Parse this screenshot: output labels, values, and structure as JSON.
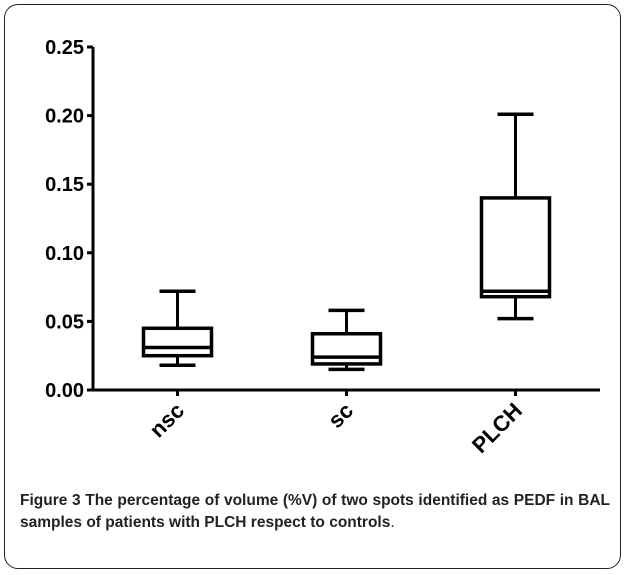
{
  "figure": {
    "caption_label": "Figure 3",
    "caption_text": "The percentage of volume (%V) of two spots identified as PEDF in BAL samples of patients with PLCH respect to controls",
    "caption_end": "."
  },
  "chart_data": {
    "type": "box",
    "title": "",
    "xlabel": "",
    "ylabel": "",
    "ylim": [
      0,
      0.25
    ],
    "yticks": [
      "0.00",
      "0.05",
      "0.10",
      "0.15",
      "0.20",
      "0.25"
    ],
    "ytick_values": [
      0,
      0.05,
      0.1,
      0.15,
      0.2,
      0.25
    ],
    "categories": [
      "nsc",
      "sc",
      "PLCH"
    ],
    "boxes": [
      {
        "category": "nsc",
        "min": 0.018,
        "q1": 0.025,
        "median": 0.031,
        "q3": 0.045,
        "max": 0.072
      },
      {
        "category": "sc",
        "min": 0.015,
        "q1": 0.019,
        "median": 0.024,
        "q3": 0.041,
        "max": 0.058
      },
      {
        "category": "PLCH",
        "min": 0.052,
        "q1": 0.068,
        "median": 0.072,
        "q3": 0.14,
        "max": 0.201
      }
    ],
    "grid": false,
    "color": "#000000"
  }
}
